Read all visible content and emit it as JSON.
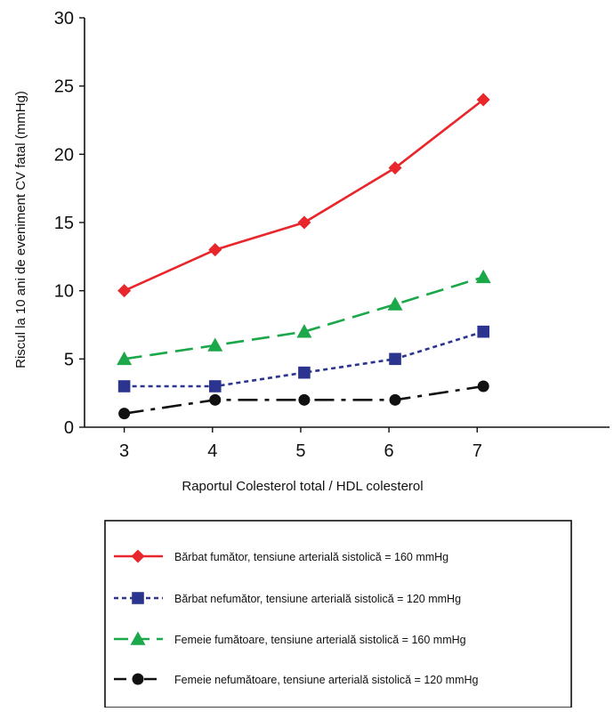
{
  "chart_data": {
    "type": "line",
    "title": "",
    "xlabel": "Raportul Colesterol total / HDL colesterol",
    "ylabel": "Riscul la 10 ani de eveniment CV fatal (mmHg)",
    "x": [
      3,
      4,
      5,
      6,
      7
    ],
    "xlim": [
      2.55,
      8.5
    ],
    "ylim": [
      0,
      30
    ],
    "x_ticks": [
      3,
      4,
      5,
      6,
      7
    ],
    "y_ticks": [
      0,
      5,
      10,
      15,
      20,
      25,
      30
    ],
    "grid": false,
    "legend_position": "bottom",
    "series": [
      {
        "name": "Bărbat fumător, tensiune arterială sistolică = 160 mmHg",
        "values": [
          10,
          13,
          15,
          19,
          24
        ],
        "color": "#e8262b",
        "marker": "diamond",
        "line": "solid"
      },
      {
        "name": "Bărbat nefumător, tensiune arterială sistolică = 120 mmHg",
        "values": [
          3,
          3,
          4,
          5,
          7
        ],
        "color": "#2b3590",
        "marker": "square",
        "line": "dotted"
      },
      {
        "name": "Femeie fumătoare, tensiune arterială sistolică = 160 mmHg",
        "values": [
          5,
          6,
          7,
          9,
          11
        ],
        "color": "#1aa84a",
        "marker": "triangle",
        "line": "dashed"
      },
      {
        "name": "Femeie nefumătoare, tensiune arterială sistolică = 120 mmHg",
        "values": [
          1,
          2,
          2,
          2,
          3
        ],
        "color": "#111111",
        "marker": "circle",
        "line": "dashdot"
      }
    ]
  }
}
